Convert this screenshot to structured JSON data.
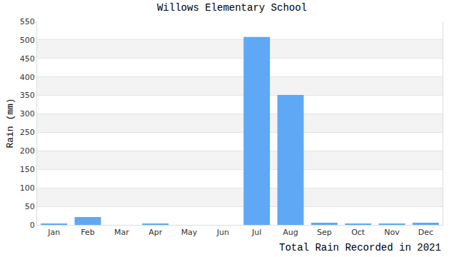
{
  "chart_data": {
    "type": "bar",
    "title": "Willows Elementary School",
    "ylabel": "Rain (mm)",
    "xlabel": "Total Rain Recorded in 2021",
    "categories": [
      "Jan",
      "Feb",
      "Mar",
      "Apr",
      "May",
      "Jun",
      "Jul",
      "Aug",
      "Sep",
      "Oct",
      "Nov",
      "Dec"
    ],
    "values": [
      4,
      21,
      0,
      2,
      0,
      0,
      508,
      351,
      6,
      4,
      2,
      6
    ],
    "color": "#5fa8f5",
    "ylim": [
      0,
      550
    ],
    "yticks": [
      0,
      50,
      100,
      150,
      200,
      250,
      300,
      350,
      400,
      450,
      500,
      550
    ],
    "grid": true
  }
}
